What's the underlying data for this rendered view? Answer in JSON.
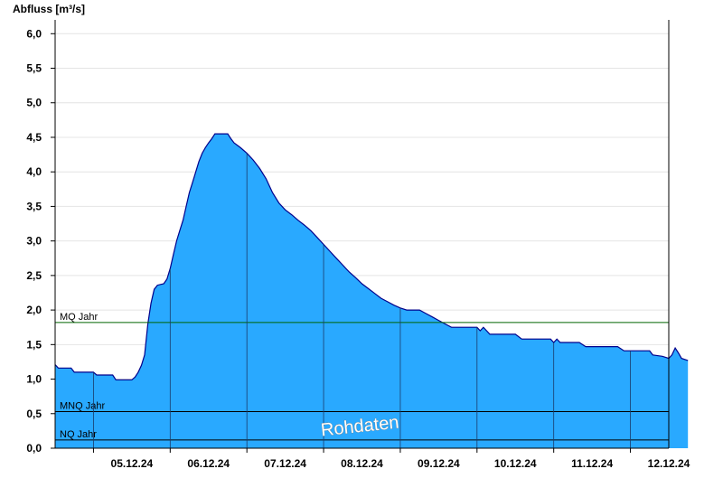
{
  "chart_data": {
    "type": "area",
    "ylabel": "Abfluss [m³/s]",
    "ylim": [
      0.0,
      6.2
    ],
    "yticks": [
      "0,0",
      "0,5",
      "1,0",
      "1,5",
      "2,0",
      "2,5",
      "3,0",
      "3,5",
      "4,0",
      "4,5",
      "5,0",
      "5,5",
      "6,0"
    ],
    "xticks": [
      "05.12.24",
      "06.12.24",
      "07.12.24",
      "08.12.24",
      "09.12.24",
      "10.12.24",
      "11.12.24",
      "12.12.24"
    ],
    "xlim": [
      "2024-12-04T12:00",
      "2024-12-12T12:00"
    ],
    "grid": true,
    "fill_color": "#29a9ff",
    "line_color": "#00008b",
    "series": [
      {
        "values": [
          [
            "2024-12-04T12:00",
            1.21
          ],
          [
            "2024-12-04T13:00",
            1.16
          ],
          [
            "2024-12-04T17:00",
            1.16
          ],
          [
            "2024-12-04T18:00",
            1.1
          ],
          [
            "2024-12-05T00:00",
            1.1
          ],
          [
            "2024-12-05T01:00",
            1.06
          ],
          [
            "2024-12-05T06:00",
            1.06
          ],
          [
            "2024-12-05T07:00",
            0.99
          ],
          [
            "2024-12-05T12:00",
            0.99
          ],
          [
            "2024-12-05T13:00",
            1.03
          ],
          [
            "2024-12-05T14:00",
            1.1
          ],
          [
            "2024-12-05T15:00",
            1.2
          ],
          [
            "2024-12-05T16:00",
            1.35
          ],
          [
            "2024-12-05T17:00",
            1.8
          ],
          [
            "2024-12-05T18:00",
            2.1
          ],
          [
            "2024-12-05T19:00",
            2.3
          ],
          [
            "2024-12-05T20:00",
            2.36
          ],
          [
            "2024-12-05T22:00",
            2.38
          ],
          [
            "2024-12-05T23:00",
            2.45
          ],
          [
            "2024-12-06T00:00",
            2.6
          ],
          [
            "2024-12-06T01:00",
            2.8
          ],
          [
            "2024-12-06T02:00",
            3.0
          ],
          [
            "2024-12-06T03:00",
            3.15
          ],
          [
            "2024-12-06T04:00",
            3.3
          ],
          [
            "2024-12-06T05:00",
            3.5
          ],
          [
            "2024-12-06T06:00",
            3.7
          ],
          [
            "2024-12-06T07:00",
            3.85
          ],
          [
            "2024-12-06T08:00",
            4.0
          ],
          [
            "2024-12-06T09:00",
            4.15
          ],
          [
            "2024-12-06T10:00",
            4.27
          ],
          [
            "2024-12-06T11:00",
            4.35
          ],
          [
            "2024-12-06T12:00",
            4.42
          ],
          [
            "2024-12-06T13:00",
            4.48
          ],
          [
            "2024-12-06T14:00",
            4.55
          ],
          [
            "2024-12-06T18:00",
            4.55
          ],
          [
            "2024-12-06T19:00",
            4.48
          ],
          [
            "2024-12-06T20:00",
            4.42
          ],
          [
            "2024-12-06T22:00",
            4.35
          ],
          [
            "2024-12-07T00:00",
            4.27
          ],
          [
            "2024-12-07T02:00",
            4.17
          ],
          [
            "2024-12-07T04:00",
            4.05
          ],
          [
            "2024-12-07T06:00",
            3.9
          ],
          [
            "2024-12-07T08:00",
            3.7
          ],
          [
            "2024-12-07T10:00",
            3.55
          ],
          [
            "2024-12-07T12:00",
            3.45
          ],
          [
            "2024-12-07T14:00",
            3.38
          ],
          [
            "2024-12-07T16:00",
            3.3
          ],
          [
            "2024-12-07T18:00",
            3.23
          ],
          [
            "2024-12-07T20:00",
            3.15
          ],
          [
            "2024-12-07T22:00",
            3.05
          ],
          [
            "2024-12-08T00:00",
            2.95
          ],
          [
            "2024-12-08T02:00",
            2.85
          ],
          [
            "2024-12-08T04:00",
            2.75
          ],
          [
            "2024-12-08T06:00",
            2.65
          ],
          [
            "2024-12-08T08:00",
            2.55
          ],
          [
            "2024-12-08T10:00",
            2.47
          ],
          [
            "2024-12-08T12:00",
            2.38
          ],
          [
            "2024-12-08T14:00",
            2.31
          ],
          [
            "2024-12-08T16:00",
            2.24
          ],
          [
            "2024-12-08T18:00",
            2.17
          ],
          [
            "2024-12-08T20:00",
            2.12
          ],
          [
            "2024-12-08T22:00",
            2.07
          ],
          [
            "2024-12-09T00:00",
            2.03
          ],
          [
            "2024-12-09T02:00",
            2.0
          ],
          [
            "2024-12-09T06:00",
            2.0
          ],
          [
            "2024-12-09T08:00",
            1.95
          ],
          [
            "2024-12-09T10:00",
            1.9
          ],
          [
            "2024-12-09T12:00",
            1.85
          ],
          [
            "2024-12-09T14:00",
            1.8
          ],
          [
            "2024-12-09T16:00",
            1.75
          ],
          [
            "2024-12-10T00:00",
            1.75
          ],
          [
            "2024-12-10T01:00",
            1.7
          ],
          [
            "2024-12-10T02:00",
            1.75
          ],
          [
            "2024-12-10T03:00",
            1.7
          ],
          [
            "2024-12-10T04:00",
            1.65
          ],
          [
            "2024-12-10T12:00",
            1.65
          ],
          [
            "2024-12-10T14:00",
            1.58
          ],
          [
            "2024-12-10T23:00",
            1.58
          ],
          [
            "2024-12-11T00:00",
            1.53
          ],
          [
            "2024-12-11T01:00",
            1.58
          ],
          [
            "2024-12-11T02:00",
            1.53
          ],
          [
            "2024-12-11T08:00",
            1.53
          ],
          [
            "2024-12-11T10:00",
            1.47
          ],
          [
            "2024-12-11T20:00",
            1.47
          ],
          [
            "2024-12-11T22:00",
            1.41
          ],
          [
            "2024-12-12T06:00",
            1.41
          ],
          [
            "2024-12-12T07:00",
            1.35
          ],
          [
            "2024-12-12T10:00",
            1.33
          ],
          [
            "2024-12-12T12:00",
            1.3
          ],
          [
            "2024-12-12T13:00",
            1.35
          ],
          [
            "2024-12-12T14:00",
            1.45
          ],
          [
            "2024-12-12T15:00",
            1.38
          ],
          [
            "2024-12-12T16:00",
            1.3
          ],
          [
            "2024-12-12T18:00",
            1.27
          ]
        ]
      }
    ],
    "reference_lines": [
      {
        "label": "MQ Jahr",
        "value": 1.82,
        "color": "#006400"
      },
      {
        "label": "MNQ Jahr",
        "value": 0.53,
        "color": "#000000"
      },
      {
        "label": "NQ Jahr",
        "value": 0.12,
        "color": "#000000"
      }
    ],
    "watermark": "Rohdaten"
  }
}
